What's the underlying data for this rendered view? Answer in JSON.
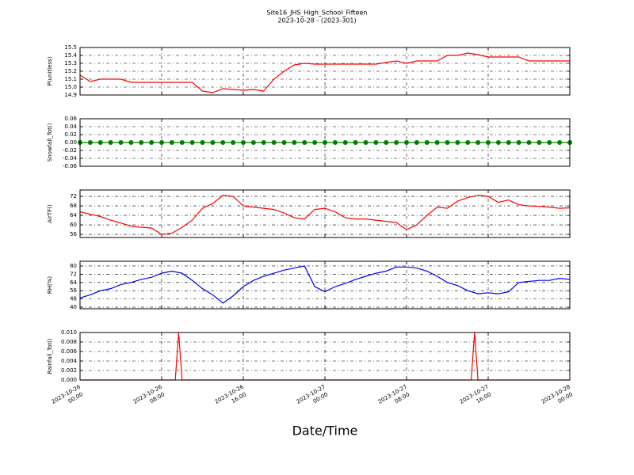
{
  "title": "Site16_JHS_High_School_Fifteen",
  "subtitle": "2023-10-28 - (2023-301)",
  "chart_data": [
    {
      "type": "line",
      "y_label": "P(unitless)",
      "color": "#ff0000",
      "grid": true,
      "xlim": [
        "2023-10-26 00:00",
        "2023-10-28 00:00"
      ],
      "xticks": [
        "2023-10-26 00:00",
        "2023-10-26 08:00",
        "2023-10-26 16:00",
        "2023-10-27 00:00",
        "2023-10-27 08:00",
        "2023-10-27 16:00",
        "2023-10-28 00:00"
      ],
      "ylim": [
        14.9,
        15.5
      ],
      "yticks": [
        14.9,
        {
          "value": 15,
          "label": "15.0"
        },
        15.1,
        15.2,
        15.3,
        15.4,
        15.5
      ],
      "x": [
        "2023-10-26 00:00",
        "2023-10-26 01:00",
        "2023-10-26 02:00",
        "2023-10-26 03:00",
        "2023-10-26 04:00",
        "2023-10-26 05:00",
        "2023-10-26 06:00",
        "2023-10-26 07:00",
        "2023-10-26 08:00",
        "2023-10-26 09:00",
        "2023-10-26 10:00",
        "2023-10-26 11:00",
        "2023-10-26 12:00",
        "2023-10-26 13:00",
        "2023-10-26 14:00",
        "2023-10-26 15:00",
        "2023-10-26 16:00",
        "2023-10-26 17:00",
        "2023-10-26 18:00",
        "2023-10-26 19:00",
        "2023-10-26 20:00",
        "2023-10-26 21:00",
        "2023-10-26 22:00",
        "2023-10-26 23:00",
        "2023-10-27 00:00",
        "2023-10-27 01:00",
        "2023-10-27 02:00",
        "2023-10-27 03:00",
        "2023-10-27 04:00",
        "2023-10-27 05:00",
        "2023-10-27 06:00",
        "2023-10-27 07:00",
        "2023-10-27 08:00",
        "2023-10-27 09:00",
        "2023-10-27 10:00",
        "2023-10-27 11:00",
        "2023-10-27 12:00",
        "2023-10-27 13:00",
        "2023-10-27 14:00",
        "2023-10-27 15:00",
        "2023-10-27 16:00",
        "2023-10-27 17:00",
        "2023-10-27 18:00",
        "2023-10-27 19:00",
        "2023-10-27 20:00",
        "2023-10-27 21:00",
        "2023-10-27 22:00",
        "2023-10-27 23:00",
        "2023-10-28 00:00"
      ],
      "values": [
        15.15,
        15.07,
        15.1,
        15.1,
        15.1,
        15.06,
        15.06,
        15.06,
        15.06,
        15.06,
        15.06,
        15.06,
        14.95,
        14.93,
        14.98,
        14.97,
        14.96,
        14.97,
        14.95,
        15.1,
        15.2,
        15.28,
        15.3,
        15.29,
        15.29,
        15.29,
        15.29,
        15.29,
        15.29,
        15.29,
        15.31,
        15.33,
        15.3,
        15.33,
        15.33,
        15.33,
        15.4,
        15.4,
        15.43,
        15.41,
        15.38,
        15.38,
        15.38,
        15.38,
        15.33,
        15.33,
        15.33,
        15.33,
        15.33
      ]
    },
    {
      "type": "line",
      "y_label": "Snowfall_Tot()",
      "color": "#008000",
      "marker": true,
      "grid": true,
      "xlim": [
        "2023-10-26 00:00",
        "2023-10-28 00:00"
      ],
      "xticks": [
        "2023-10-26 00:00",
        "2023-10-26 08:00",
        "2023-10-26 16:00",
        "2023-10-27 00:00",
        "2023-10-27 08:00",
        "2023-10-27 16:00",
        "2023-10-28 00:00"
      ],
      "ylim": [
        -0.06,
        0.06
      ],
      "yticks": [
        -0.06,
        -0.04,
        -0.02,
        {
          "value": 0,
          "label": "0.00"
        },
        0.02,
        0.04,
        0.06
      ],
      "x": [
        "2023-10-26 00:00",
        "2023-10-26 01:00",
        "2023-10-26 02:00",
        "2023-10-26 03:00",
        "2023-10-26 04:00",
        "2023-10-26 05:00",
        "2023-10-26 06:00",
        "2023-10-26 07:00",
        "2023-10-26 08:00",
        "2023-10-26 09:00",
        "2023-10-26 10:00",
        "2023-10-26 11:00",
        "2023-10-26 12:00",
        "2023-10-26 13:00",
        "2023-10-26 14:00",
        "2023-10-26 15:00",
        "2023-10-26 16:00",
        "2023-10-26 17:00",
        "2023-10-26 18:00",
        "2023-10-26 19:00",
        "2023-10-26 20:00",
        "2023-10-26 21:00",
        "2023-10-26 22:00",
        "2023-10-26 23:00",
        "2023-10-27 00:00",
        "2023-10-27 01:00",
        "2023-10-27 02:00",
        "2023-10-27 03:00",
        "2023-10-27 04:00",
        "2023-10-27 05:00",
        "2023-10-27 06:00",
        "2023-10-27 07:00",
        "2023-10-27 08:00",
        "2023-10-27 09:00",
        "2023-10-27 10:00",
        "2023-10-27 11:00",
        "2023-10-27 12:00",
        "2023-10-27 13:00",
        "2023-10-27 14:00",
        "2023-10-27 15:00",
        "2023-10-27 16:00",
        "2023-10-27 17:00",
        "2023-10-27 18:00",
        "2023-10-27 19:00",
        "2023-10-27 20:00",
        "2023-10-27 21:00",
        "2023-10-27 22:00",
        "2023-10-27 23:00",
        "2023-10-28 00:00"
      ],
      "values": [
        0,
        0,
        0,
        0,
        0,
        0,
        0,
        0,
        0,
        0,
        0,
        0,
        0,
        0,
        0,
        0,
        0,
        0,
        0,
        0,
        0,
        0,
        0,
        0,
        0,
        0,
        0,
        0,
        0,
        0,
        0,
        0,
        0,
        0,
        0,
        0,
        0,
        0,
        0,
        0,
        0,
        0,
        0,
        0,
        0,
        0,
        0,
        0,
        0
      ]
    },
    {
      "type": "line",
      "y_label": "AirTF()",
      "color": "#ff0000",
      "grid": true,
      "xlim": [
        "2023-10-26 00:00",
        "2023-10-28 00:00"
      ],
      "xticks": [
        "2023-10-26 00:00",
        "2023-10-26 08:00",
        "2023-10-26 16:00",
        "2023-10-27 00:00",
        "2023-10-27 08:00",
        "2023-10-27 16:00",
        "2023-10-28 00:00"
      ],
      "ylim": [
        54.7,
        74.7
      ],
      "yticks": [
        56,
        60,
        64,
        68,
        72
      ],
      "x": [
        "2023-10-26 00:00",
        "2023-10-26 01:00",
        "2023-10-26 02:00",
        "2023-10-26 03:00",
        "2023-10-26 04:00",
        "2023-10-26 05:00",
        "2023-10-26 06:00",
        "2023-10-26 07:00",
        "2023-10-26 08:00",
        "2023-10-26 09:00",
        "2023-10-26 10:00",
        "2023-10-26 11:00",
        "2023-10-26 12:00",
        "2023-10-26 13:00",
        "2023-10-26 14:00",
        "2023-10-26 15:00",
        "2023-10-26 16:00",
        "2023-10-26 17:00",
        "2023-10-26 18:00",
        "2023-10-26 19:00",
        "2023-10-26 20:00",
        "2023-10-26 21:00",
        "2023-10-26 22:00",
        "2023-10-26 23:00",
        "2023-10-27 00:00",
        "2023-10-27 01:00",
        "2023-10-27 02:00",
        "2023-10-27 03:00",
        "2023-10-27 04:00",
        "2023-10-27 05:00",
        "2023-10-27 06:00",
        "2023-10-27 07:00",
        "2023-10-27 08:00",
        "2023-10-27 09:00",
        "2023-10-27 10:00",
        "2023-10-27 11:00",
        "2023-10-27 12:00",
        "2023-10-27 13:00",
        "2023-10-27 14:00",
        "2023-10-27 15:00",
        "2023-10-27 16:00",
        "2023-10-27 17:00",
        "2023-10-27 18:00",
        "2023-10-27 19:00",
        "2023-10-27 20:00",
        "2023-10-27 21:00",
        "2023-10-27 22:00",
        "2023-10-27 23:00",
        "2023-10-28 00:00"
      ],
      "values": [
        65.5,
        64.5,
        63.5,
        62,
        60.8,
        59.5,
        59,
        58.7,
        56,
        56.5,
        59,
        62,
        67,
        69,
        72.5,
        72,
        68,
        67.5,
        67,
        66.5,
        65,
        63,
        62.5,
        66.5,
        67,
        65.5,
        63,
        62.5,
        62.5,
        62,
        61.5,
        61,
        58,
        60,
        64,
        67.5,
        67,
        70,
        71.5,
        72.5,
        72,
        69.5,
        70.5,
        68.5,
        68,
        67.8,
        67.5,
        67,
        67.2
      ]
    },
    {
      "type": "line",
      "y_label": "RH(%)",
      "color": "#0000ff",
      "grid": true,
      "xlim": [
        "2023-10-26 00:00",
        "2023-10-28 00:00"
      ],
      "xticks": [
        "2023-10-26 00:00",
        "2023-10-26 08:00",
        "2023-10-26 16:00",
        "2023-10-27 00:00",
        "2023-10-27 08:00",
        "2023-10-27 16:00",
        "2023-10-28 00:00"
      ],
      "ylim": [
        38.5,
        84.6
      ],
      "yticks": [
        40,
        48,
        56,
        64,
        72,
        80
      ],
      "x": [
        "2023-10-26 00:00",
        "2023-10-26 01:00",
        "2023-10-26 02:00",
        "2023-10-26 03:00",
        "2023-10-26 04:00",
        "2023-10-26 05:00",
        "2023-10-26 06:00",
        "2023-10-26 07:00",
        "2023-10-26 08:00",
        "2023-10-26 09:00",
        "2023-10-26 10:00",
        "2023-10-26 11:00",
        "2023-10-26 12:00",
        "2023-10-26 13:00",
        "2023-10-26 14:00",
        "2023-10-26 15:00",
        "2023-10-26 16:00",
        "2023-10-26 17:00",
        "2023-10-26 18:00",
        "2023-10-26 19:00",
        "2023-10-26 20:00",
        "2023-10-26 21:00",
        "2023-10-26 22:00",
        "2023-10-26 23:00",
        "2023-10-27 00:00",
        "2023-10-27 01:00",
        "2023-10-27 02:00",
        "2023-10-27 03:00",
        "2023-10-27 04:00",
        "2023-10-27 05:00",
        "2023-10-27 06:00",
        "2023-10-27 07:00",
        "2023-10-27 08:00",
        "2023-10-27 09:00",
        "2023-10-27 10:00",
        "2023-10-27 11:00",
        "2023-10-27 12:00",
        "2023-10-27 13:00",
        "2023-10-27 14:00",
        "2023-10-27 15:00",
        "2023-10-27 16:00",
        "2023-10-27 17:00",
        "2023-10-27 18:00",
        "2023-10-27 19:00",
        "2023-10-27 20:00",
        "2023-10-27 21:00",
        "2023-10-27 22:00",
        "2023-10-27 23:00",
        "2023-10-28 00:00"
      ],
      "values": [
        49,
        52,
        56,
        58,
        62,
        64,
        67,
        69,
        73,
        75,
        73,
        66,
        58,
        52,
        44,
        51,
        60,
        66,
        70,
        73,
        76,
        78,
        80,
        60,
        55,
        60,
        63,
        67,
        70,
        73,
        75,
        79,
        79,
        78,
        75,
        70,
        64,
        61,
        56,
        53,
        54,
        53,
        55,
        64,
        65,
        66,
        66,
        68,
        67
      ]
    },
    {
      "type": "line",
      "y_label": "Rainfall_Tot()",
      "x_label": "Date/Time",
      "color": "#ff0000",
      "grid": true,
      "xlim": [
        "2023-10-26 00:00",
        "2023-10-28 00:00"
      ],
      "xticks": [
        "2023-10-26 00:00",
        "2023-10-26 08:00",
        "2023-10-26 16:00",
        "2023-10-27 00:00",
        "2023-10-27 08:00",
        "2023-10-27 16:00",
        "2023-10-28 00:00"
      ],
      "ylim": [
        0,
        0.01
      ],
      "yticks": [
        {
          "value": 0,
          "label": "0.000"
        },
        0.002,
        0.004,
        0.006,
        0.008,
        {
          "value": 0.01,
          "label": "0.010"
        }
      ],
      "x": [
        "2023-10-26 00:00",
        "2023-10-26 09:20",
        "2023-10-26 09:40",
        "2023-10-26 10:00",
        "2023-10-27 14:20",
        "2023-10-27 14:40",
        "2023-10-27 15:00",
        "2023-10-28 00:00"
      ],
      "values": [
        0,
        0,
        0.01,
        0,
        0,
        0.01,
        0,
        0
      ]
    }
  ]
}
